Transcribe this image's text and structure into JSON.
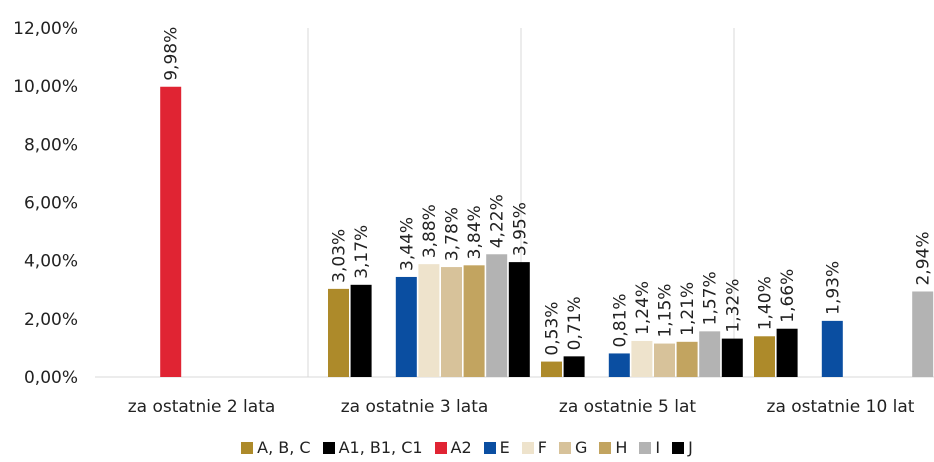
{
  "chart_data": {
    "type": "bar",
    "categories": [
      "za ostatnie 2 lata",
      "za ostatnie 3 lata",
      "za ostatnie 5 lat",
      "za ostatnie 10 lat"
    ],
    "ylim": [
      0,
      12
    ],
    "yticks": [
      "0,00%",
      "2,00%",
      "4,00%",
      "6,00%",
      "8,00%",
      "10,00%",
      "12,00%"
    ],
    "grid": false,
    "legend_placement": "bottom",
    "series": [
      {
        "name": "A, B, C",
        "color": "#ad8a2a",
        "values": [
          null,
          3.03,
          0.53,
          1.4
        ],
        "labels": [
          null,
          "3,03%",
          "0,53%",
          "1,40%"
        ]
      },
      {
        "name": "A1, B1, C1",
        "color": "#000000",
        "values": [
          null,
          3.17,
          0.71,
          1.66
        ],
        "labels": [
          null,
          "3,17%",
          "0,71%",
          "1,66%"
        ]
      },
      {
        "name": "A2",
        "color": "#e02433",
        "values": [
          9.98,
          null,
          null,
          null
        ],
        "labels": [
          "9,98%",
          null,
          null,
          null
        ]
      },
      {
        "name": "E",
        "color": "#0a4ea1",
        "values": [
          null,
          3.44,
          0.81,
          1.93
        ],
        "labels": [
          null,
          "3,44%",
          "0,81%",
          "1,93%"
        ]
      },
      {
        "name": "F",
        "color": "#eee3cc",
        "values": [
          null,
          3.88,
          1.24,
          null
        ],
        "labels": [
          null,
          "3,88%",
          "1,24%",
          null
        ]
      },
      {
        "name": "G",
        "color": "#d7c29a",
        "values": [
          null,
          3.78,
          1.15,
          null
        ],
        "labels": [
          null,
          "3,78%",
          "1,15%",
          null
        ]
      },
      {
        "name": "H",
        "color": "#c2a460",
        "values": [
          null,
          3.84,
          1.21,
          null
        ],
        "labels": [
          null,
          "3,84%",
          "1,21%",
          null
        ]
      },
      {
        "name": "I",
        "color": "#b3b3b3",
        "values": [
          null,
          4.22,
          1.57,
          2.94
        ],
        "labels": [
          null,
          "4,22%",
          "1,57%",
          "2,94%"
        ]
      },
      {
        "name": "J",
        "color": "#000000",
        "values": [
          null,
          3.95,
          1.32,
          null
        ],
        "labels": [
          null,
          "3,95%",
          "1,32%",
          null
        ]
      }
    ]
  }
}
